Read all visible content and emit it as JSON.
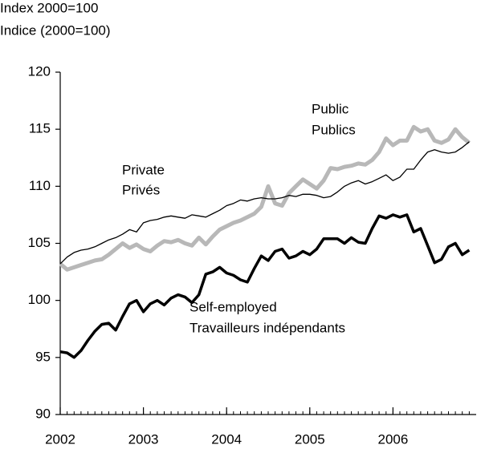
{
  "chart_data": {
    "type": "line",
    "subtitle_lines": [
      "Index 2000=100",
      "Indice (2000=100)"
    ],
    "x": [
      2002,
      2002.083,
      2002.167,
      2002.25,
      2002.333,
      2002.417,
      2002.5,
      2002.583,
      2002.667,
      2002.75,
      2002.833,
      2002.917,
      2003,
      2003.083,
      2003.167,
      2003.25,
      2003.333,
      2003.417,
      2003.5,
      2003.583,
      2003.667,
      2003.75,
      2003.833,
      2003.917,
      2004,
      2004.083,
      2004.167,
      2004.25,
      2004.333,
      2004.417,
      2004.5,
      2004.583,
      2004.667,
      2004.75,
      2004.833,
      2004.917,
      2005,
      2005.083,
      2005.167,
      2005.25,
      2005.333,
      2005.417,
      2005.5,
      2005.583,
      2005.667,
      2005.75,
      2005.833,
      2005.917,
      2006,
      2006.083,
      2006.167,
      2006.25,
      2006.333,
      2006.417,
      2006.5,
      2006.583,
      2006.667,
      2006.75,
      2006.833,
      2006.917
    ],
    "series": [
      {
        "name": "Public / Publics",
        "color": "#b8b8b8",
        "width": 5,
        "values": [
          103.2,
          102.7,
          102.9,
          103.1,
          103.3,
          103.5,
          103.6,
          104.0,
          104.5,
          105.0,
          104.6,
          104.9,
          104.5,
          104.3,
          104.8,
          105.2,
          105.1,
          105.3,
          105.0,
          104.8,
          105.5,
          104.9,
          105.6,
          106.2,
          106.5,
          106.8,
          107.0,
          107.3,
          107.6,
          108.2,
          110.0,
          108.5,
          108.3,
          109.4,
          110.0,
          110.6,
          110.2,
          109.8,
          110.5,
          111.6,
          111.5,
          111.7,
          111.8,
          112.0,
          111.9,
          112.3,
          113.0,
          114.2,
          113.6,
          114.0,
          114.0,
          115.2,
          114.8,
          115.0,
          114.0,
          113.8,
          114.1,
          115.0,
          114.3,
          113.8
        ]
      },
      {
        "name": "Private / Privés",
        "color": "#000000",
        "width": 1.3,
        "values": [
          103.2,
          103.8,
          104.2,
          104.4,
          104.5,
          104.7,
          105.0,
          105.3,
          105.5,
          105.8,
          106.2,
          106.0,
          106.8,
          107.0,
          107.1,
          107.3,
          107.4,
          107.3,
          107.2,
          107.5,
          107.4,
          107.3,
          107.6,
          107.9,
          108.3,
          108.5,
          108.8,
          108.7,
          108.9,
          109.0,
          108.9,
          108.9,
          109.0,
          109.2,
          109.1,
          109.3,
          109.3,
          109.2,
          109.0,
          109.1,
          109.5,
          110.0,
          110.3,
          110.5,
          110.2,
          110.4,
          110.7,
          111.0,
          110.5,
          110.8,
          111.5,
          111.5,
          112.3,
          113.0,
          113.2,
          113.0,
          112.9,
          113.0,
          113.4,
          113.9
        ]
      },
      {
        "name": "Self-employed / Travailleurs indépendants",
        "color": "#000000",
        "width": 3.5,
        "values": [
          95.5,
          95.4,
          95.0,
          95.6,
          96.5,
          97.3,
          97.9,
          98.0,
          97.4,
          98.6,
          99.7,
          100.0,
          99.0,
          99.7,
          100.0,
          99.6,
          100.2,
          100.5,
          100.3,
          99.8,
          100.5,
          102.3,
          102.5,
          102.9,
          102.4,
          102.2,
          101.8,
          101.6,
          102.8,
          103.9,
          103.5,
          104.3,
          104.5,
          103.7,
          103.9,
          104.3,
          104.0,
          104.5,
          105.4,
          105.4,
          105.4,
          105.0,
          105.5,
          105.1,
          105.0,
          106.3,
          107.4,
          107.2,
          107.5,
          107.3,
          107.5,
          106.0,
          106.3,
          104.8,
          103.3,
          103.6,
          104.7,
          105.0,
          104.0,
          104.4
        ]
      }
    ],
    "annotations": [
      "Public",
      "Publics",
      "Private",
      "Privés",
      "Self-employed",
      "Travailleurs indépendants"
    ],
    "xlim": [
      2002,
      2007
    ],
    "xticks": [
      2002,
      2003,
      2004,
      2005,
      2006
    ],
    "ylim": [
      90,
      120
    ],
    "yticks": [
      90,
      95,
      100,
      105,
      110,
      115,
      120
    ],
    "grid": false
  }
}
